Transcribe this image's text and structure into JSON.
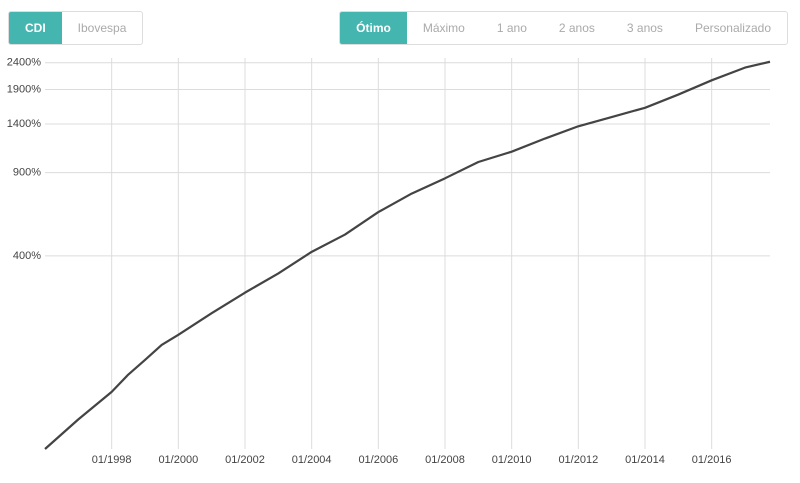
{
  "ui": {
    "left_tabs": [
      "CDI",
      "Ibovespa"
    ],
    "left_selected": 0,
    "right_tabs": [
      "Ótimo",
      "Máximo",
      "1 ano",
      "2 anos",
      "3 anos",
      "Personalizado"
    ],
    "right_selected": 0,
    "accent": "#45b5b0"
  },
  "chart_data": {
    "type": "line",
    "log_scale": true,
    "grid": true,
    "x": [
      "01/1996",
      "01/1997",
      "01/1998",
      "07/1998",
      "01/1999",
      "07/1999",
      "01/2000",
      "01/2001",
      "01/2002",
      "01/2003",
      "01/2004",
      "01/2005",
      "01/2006",
      "01/2007",
      "01/2008",
      "01/2009",
      "01/2010",
      "01/2011",
      "01/2012",
      "01/2013",
      "01/2014",
      "01/2015",
      "01/2016",
      "01/2017",
      "10/2017"
    ],
    "series": [
      {
        "color": "#444444",
        "values": [
          0,
          28,
          61,
          86,
          110,
          138,
          159,
          210,
          268,
          332,
          417,
          497,
          620,
          740,
          854,
          993,
          1091,
          1229,
          1372,
          1490,
          1617,
          1817,
          2059,
          2300,
          2420
        ]
      }
    ],
    "xlim": [
      "01/1996",
      "10/2017"
    ],
    "xticks": [
      "01/1998",
      "01/2000",
      "01/2002",
      "01/2004",
      "01/2006",
      "01/2008",
      "01/2010",
      "01/2012",
      "01/2014",
      "01/2016"
    ],
    "ylim": [
      0,
      2500
    ],
    "yticks": [
      {
        "value": 400,
        "label": "400%"
      },
      {
        "value": 900,
        "label": "900%"
      },
      {
        "value": 1400,
        "label": "1400%"
      },
      {
        "value": 1900,
        "label": "1900%"
      },
      {
        "value": 2400,
        "label": "2400%"
      }
    ]
  }
}
